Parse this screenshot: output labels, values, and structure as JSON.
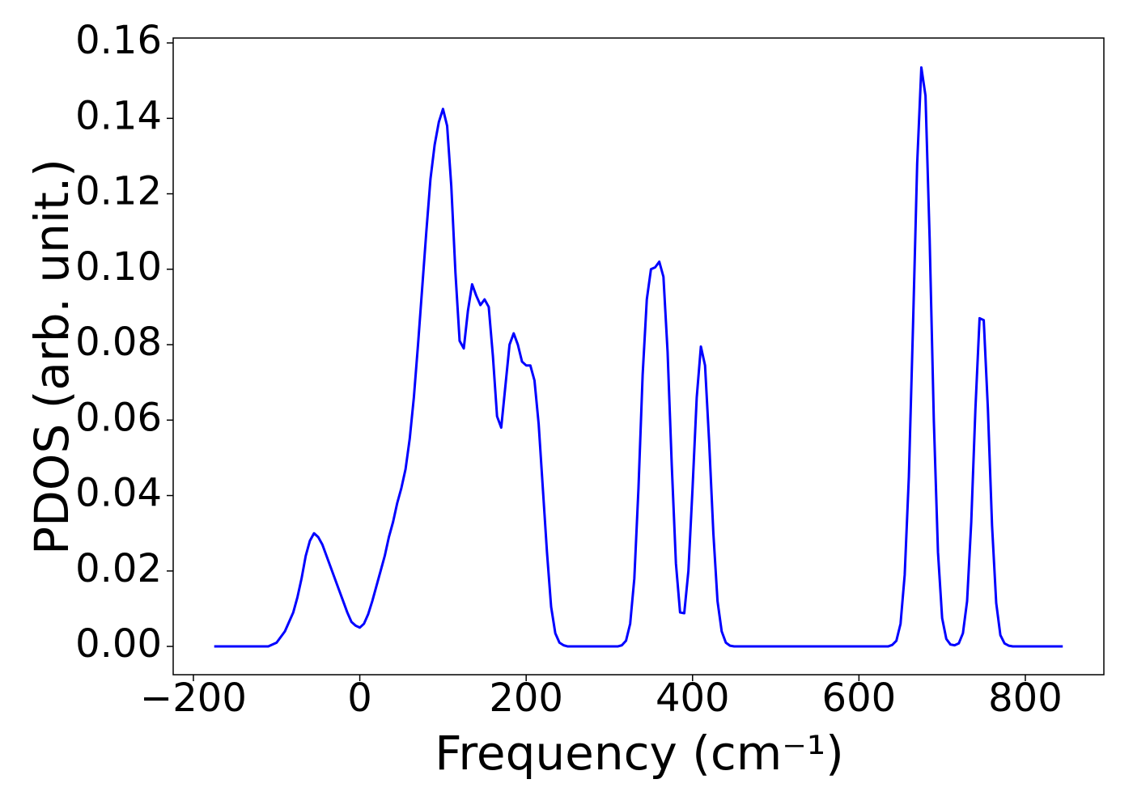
{
  "chart_data": {
    "type": "line",
    "xlabel": "Frequency (cm⁻¹)",
    "ylabel": "PDOS (arb. unit.)",
    "xlim": [
      -224.3,
      894.4
    ],
    "ylim": [
      -0.0075,
      0.1613
    ],
    "xticks": [
      {
        "value": -200,
        "label": "−200"
      },
      0,
      200,
      400,
      600,
      800
    ],
    "yticks": [
      {
        "value": 0,
        "label": "0.00"
      },
      {
        "value": 0.02,
        "label": "0.02"
      },
      {
        "value": 0.04,
        "label": "0.04"
      },
      {
        "value": 0.06,
        "label": "0.06"
      },
      {
        "value": 0.08,
        "label": "0.08"
      },
      {
        "value": 0.1,
        "label": "0.10"
      },
      {
        "value": 0.12,
        "label": "0.12"
      },
      {
        "value": 0.14,
        "label": "0.14"
      },
      {
        "value": 0.16,
        "label": "0.16"
      }
    ],
    "series": [
      {
        "color": "#0000ff",
        "x": [
          -175,
          -110,
          -100,
          -90,
          -80,
          -75,
          -70,
          -65,
          -60,
          -55,
          -50,
          -45,
          -40,
          -35,
          -30,
          -25,
          -20,
          -15,
          -10,
          -5,
          0,
          5,
          10,
          15,
          20,
          25,
          30,
          35,
          40,
          45,
          50,
          55,
          60,
          65,
          70,
          75,
          80,
          85,
          90,
          95,
          100,
          105,
          110,
          115,
          120,
          125,
          130,
          135,
          140,
          145,
          150,
          155,
          160,
          165,
          170,
          175,
          180,
          185,
          190,
          195,
          200,
          205,
          210,
          215,
          220,
          225,
          230,
          235,
          240,
          245,
          250,
          310,
          315,
          320,
          325,
          330,
          335,
          340,
          345,
          350,
          355,
          360,
          365,
          370,
          375,
          380,
          385,
          390,
          395,
          400,
          405,
          410,
          415,
          420,
          425,
          430,
          435,
          440,
          445,
          450,
          635,
          640,
          645,
          650,
          655,
          660,
          665,
          670,
          675,
          680,
          685,
          690,
          695,
          700,
          705,
          710,
          715,
          720,
          725,
          730,
          735,
          740,
          745,
          750,
          755,
          760,
          765,
          770,
          775,
          780,
          785,
          845
        ],
        "values": [
          0,
          0,
          0.001,
          0.004,
          0.009,
          0.013,
          0.018,
          0.024,
          0.028,
          0.03,
          0.029,
          0.027,
          0.024,
          0.021,
          0.018,
          0.015,
          0.012,
          0.009,
          0.0065,
          0.0055,
          0.005,
          0.006,
          0.0085,
          0.012,
          0.016,
          0.02,
          0.024,
          0.029,
          0.033,
          0.038,
          0.042,
          0.047,
          0.055,
          0.066,
          0.08,
          0.095,
          0.11,
          0.124,
          0.133,
          0.139,
          0.1425,
          0.138,
          0.122,
          0.099,
          0.081,
          0.079,
          0.089,
          0.096,
          0.093,
          0.0905,
          0.092,
          0.09,
          0.077,
          0.061,
          0.058,
          0.069,
          0.08,
          0.083,
          0.08,
          0.0755,
          0.0745,
          0.0745,
          0.0705,
          0.059,
          0.042,
          0.025,
          0.0105,
          0.0035,
          0.001,
          0.0003,
          0,
          0,
          0.0003,
          0.0015,
          0.006,
          0.018,
          0.042,
          0.072,
          0.092,
          0.1,
          0.1005,
          0.102,
          0.098,
          0.078,
          0.048,
          0.022,
          0.009,
          0.0088,
          0.02,
          0.042,
          0.066,
          0.0795,
          0.0745,
          0.054,
          0.03,
          0.012,
          0.004,
          0.001,
          0.0002,
          0,
          0,
          0.0004,
          0.0015,
          0.006,
          0.019,
          0.045,
          0.085,
          0.128,
          0.1535,
          0.146,
          0.108,
          0.06,
          0.025,
          0.0075,
          0.002,
          0.0005,
          0.0003,
          0.0008,
          0.0035,
          0.012,
          0.033,
          0.063,
          0.087,
          0.0865,
          0.063,
          0.032,
          0.0115,
          0.003,
          0.0008,
          0.0002,
          0,
          0
        ]
      }
    ]
  }
}
